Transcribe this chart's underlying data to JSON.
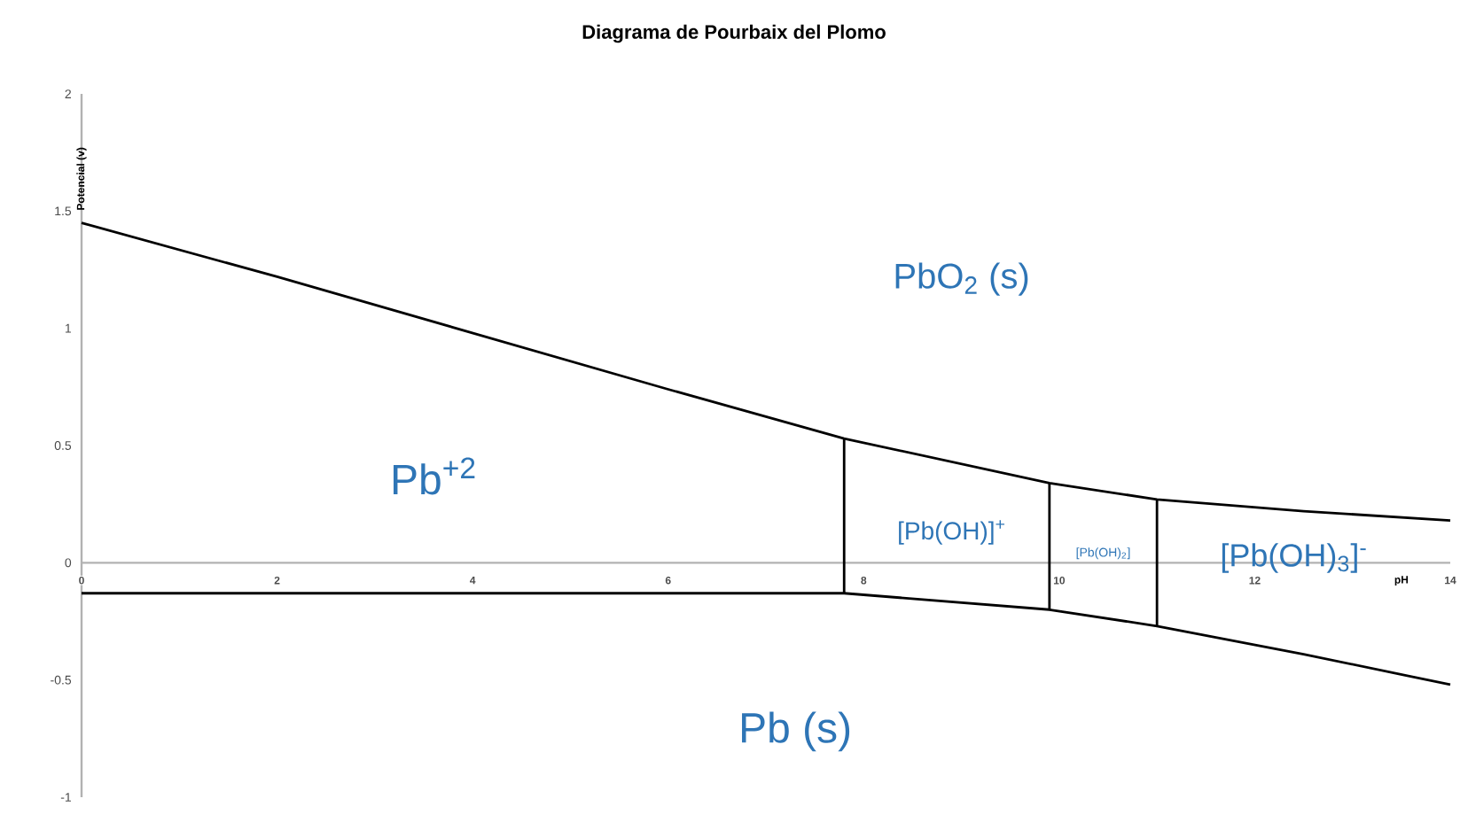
{
  "chart_data": {
    "type": "line",
    "title": "Diagrama de Pourbaix del Plomo",
    "xlabel": "pH",
    "ylabel": "Potencial (v)",
    "xlim": [
      0,
      14
    ],
    "ylim": [
      -1,
      2
    ],
    "xticks": [
      0,
      2,
      4,
      6,
      8,
      10,
      12,
      14
    ],
    "yticks": [
      -1,
      -0.5,
      0,
      0.5,
      1,
      1.5,
      2
    ],
    "grid": false,
    "marker": "none",
    "line_style": "solid",
    "series": [
      {
        "color": "#000000",
        "x": [
          0,
          2,
          4,
          6,
          7.8,
          9.9,
          11.0,
          12.5,
          14
        ],
        "values": [
          1.45,
          1.22,
          0.98,
          0.74,
          0.53,
          0.34,
          0.27,
          0.22,
          0.18
        ]
      },
      {
        "color": "#000000",
        "x": [
          0,
          2,
          4,
          6,
          7.8,
          9.9,
          11.0,
          12.5,
          14
        ],
        "values": [
          -0.13,
          -0.13,
          -0.13,
          -0.13,
          -0.13,
          -0.2,
          -0.27,
          -0.39,
          -0.52
        ]
      },
      {
        "color": "#000000",
        "x": [
          7.8,
          7.8
        ],
        "values": [
          -0.13,
          0.53
        ]
      },
      {
        "color": "#000000",
        "x": [
          9.9,
          9.9
        ],
        "values": [
          -0.2,
          0.34
        ]
      },
      {
        "color": "#000000",
        "x": [
          11.0,
          11.0
        ],
        "values": [
          -0.27,
          0.27
        ]
      }
    ],
    "annotations": [
      "PbO$_{2}$ (s)",
      "Pb$^{+2}$",
      "[Pb(OH)]$^{+}$",
      "[Pb(OH)$_{2}$]",
      "[Pb(OH)$_{3}$]$^{-}$",
      "Pb (s)"
    ]
  }
}
